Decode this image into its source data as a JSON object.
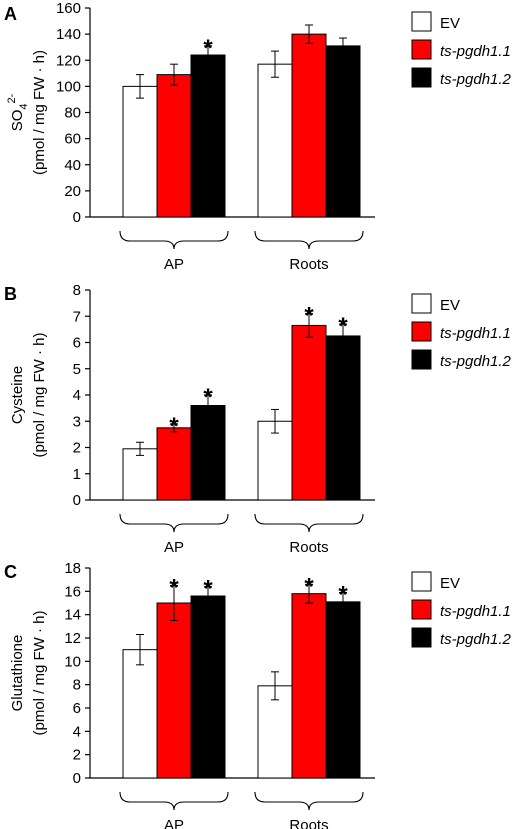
{
  "colors": {
    "EV": "#ffffff",
    "ts-pgdh1.1": "#ff0000",
    "ts-pgdh1.2": "#000000"
  },
  "legend": [
    {
      "label": "EV",
      "italic": false,
      "color": "#ffffff"
    },
    {
      "label": "ts-pgdh1.1",
      "italic": true,
      "color": "#ff0000"
    },
    {
      "label": "ts-pgdh1.2",
      "italic": true,
      "color": "#000000"
    }
  ],
  "chart_data": [
    {
      "type": "bar",
      "panel": "A",
      "ylabel_line1": "SO",
      "ylabel_sub": "4",
      "ylabel_sup": "2-",
      "ylabel_line2": "(pmol / mg FW · h)",
      "ylim": [
        0,
        160
      ],
      "yticks": [
        0,
        20,
        40,
        60,
        80,
        100,
        120,
        140,
        160
      ],
      "categories": [
        "AP",
        "Roots"
      ],
      "series": [
        {
          "name": "EV",
          "values": [
            100,
            117
          ],
          "errors": [
            9,
            10
          ],
          "significant": [
            false,
            false
          ]
        },
        {
          "name": "ts-pgdh1.1",
          "values": [
            109,
            140
          ],
          "errors": [
            8,
            7
          ],
          "significant": [
            false,
            false
          ]
        },
        {
          "name": "ts-pgdh1.2",
          "values": [
            124,
            131
          ],
          "errors": [
            7,
            6
          ],
          "significant": [
            true,
            false
          ]
        }
      ],
      "star": "*"
    },
    {
      "type": "bar",
      "panel": "B",
      "ylabel_line1": "Cysteine",
      "ylabel_line2": "(pmol / mg FW · h)",
      "ylim": [
        0,
        8
      ],
      "yticks": [
        0,
        1,
        2,
        3,
        4,
        5,
        6,
        7,
        8
      ],
      "categories": [
        "AP",
        "Roots"
      ],
      "series": [
        {
          "name": "EV",
          "values": [
            1.95,
            3.0
          ],
          "errors": [
            0.25,
            0.45
          ],
          "significant": [
            false,
            false
          ]
        },
        {
          "name": "ts-pgdh1.1",
          "values": [
            2.75,
            6.65
          ],
          "errors": [
            0.15,
            0.45
          ],
          "significant": [
            true,
            true
          ]
        },
        {
          "name": "ts-pgdh1.2",
          "values": [
            3.6,
            6.25
          ],
          "errors": [
            0.4,
            0.45
          ],
          "significant": [
            true,
            true
          ]
        }
      ],
      "star": "*"
    },
    {
      "type": "bar",
      "panel": "C",
      "ylabel_line1": "Glutathione",
      "ylabel_line2": "(pmol / mg FW · h)",
      "ylim": [
        0,
        18
      ],
      "yticks": [
        0,
        2,
        4,
        6,
        8,
        10,
        12,
        14,
        16,
        18
      ],
      "categories": [
        "AP",
        "Roots"
      ],
      "series": [
        {
          "name": "EV",
          "values": [
            11.0,
            7.9
          ],
          "errors": [
            1.3,
            1.2
          ],
          "significant": [
            false,
            false
          ]
        },
        {
          "name": "ts-pgdh1.1",
          "values": [
            15.0,
            15.8
          ],
          "errors": [
            1.5,
            0.8
          ],
          "significant": [
            true,
            true
          ]
        },
        {
          "name": "ts-pgdh1.2",
          "values": [
            15.6,
            15.1
          ],
          "errors": [
            0.8,
            0.8
          ],
          "significant": [
            true,
            true
          ]
        }
      ],
      "star": "*"
    }
  ]
}
